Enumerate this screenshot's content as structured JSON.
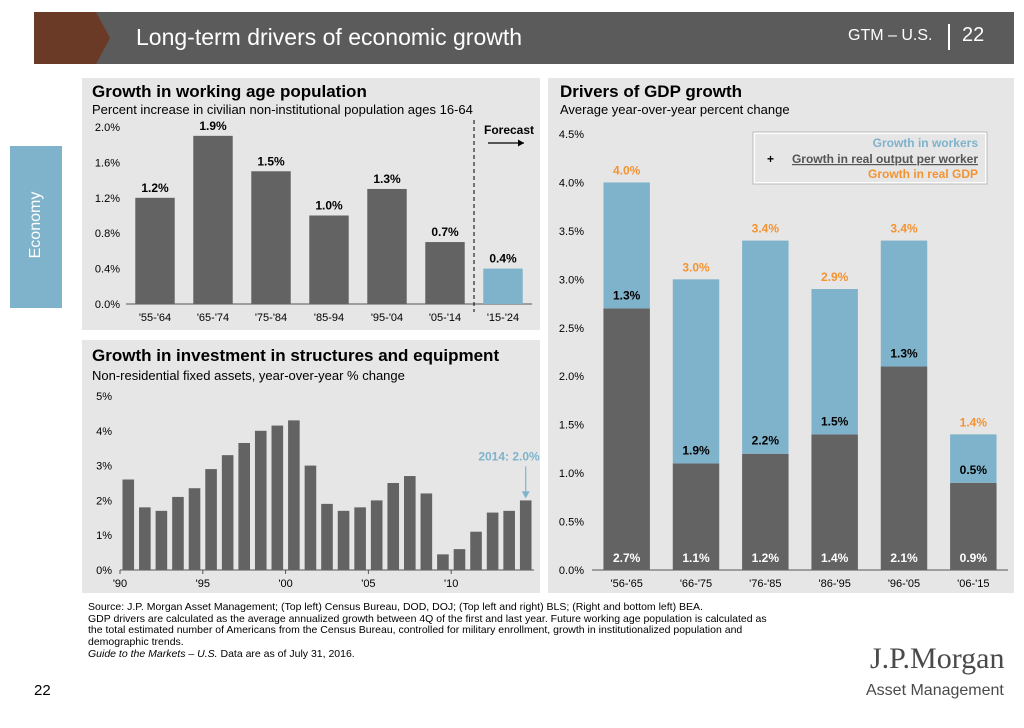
{
  "header": {
    "title": "Long-term drivers of economic growth",
    "right_label": "GTM – U.S.",
    "page": "22"
  },
  "sidebar": {
    "label": "Economy"
  },
  "colors": {
    "gray_bar": "#636363",
    "blue_bar": "#7fb3cb",
    "orange": "#f39332",
    "brown": "#6b3a26"
  },
  "panels": {
    "population": {
      "title": "Growth in working age population",
      "subtitle": "Percent increase in civilian non-institutional population ages 16-64",
      "forecast": "Forecast"
    },
    "investment": {
      "title": "Growth in investment in structures and equipment",
      "subtitle": "Non-residential fixed assets, year-over-year % change",
      "annotation": "2014: 2.0%"
    },
    "gdp": {
      "title": "Drivers of GDP growth",
      "subtitle": "Average year-over-year percent change",
      "legend": {
        "workers": "Growth in workers",
        "plus": "+",
        "output": "Growth in real output per worker",
        "gdp": "Growth in real GDP"
      }
    }
  },
  "chart_data": [
    {
      "type": "bar",
      "title": "Growth in working age population",
      "categories": [
        "'55-'64",
        "'65-'74",
        "'75-'84",
        "'85-94",
        "'95-'04",
        "'05-'14",
        "'15-'24"
      ],
      "values": [
        1.2,
        1.9,
        1.5,
        1.0,
        1.3,
        0.7,
        0.4
      ],
      "value_labels": [
        "1.2%",
        "1.9%",
        "1.5%",
        "1.0%",
        "1.3%",
        "0.7%",
        "0.4%"
      ],
      "forecast_from_index": 6,
      "yticks": [
        "0.0%",
        "0.4%",
        "0.8%",
        "1.2%",
        "1.6%",
        "2.0%"
      ],
      "ylim": [
        0,
        2.0
      ]
    },
    {
      "type": "bar",
      "title": "Growth in investment in structures and equipment",
      "years": [
        1990,
        1991,
        1992,
        1993,
        1994,
        1995,
        1996,
        1997,
        1998,
        1999,
        2000,
        2001,
        2002,
        2003,
        2004,
        2005,
        2006,
        2007,
        2008,
        2009,
        2010,
        2011,
        2012,
        2013,
        2014
      ],
      "values": [
        2.6,
        1.8,
        1.7,
        2.1,
        2.35,
        2.9,
        3.3,
        3.65,
        4.0,
        4.15,
        4.3,
        3.0,
        1.9,
        1.7,
        1.8,
        2.0,
        2.5,
        2.7,
        2.2,
        0.45,
        0.6,
        1.1,
        1.65,
        1.7,
        2.0
      ],
      "xticks": [
        "'90",
        "'95",
        "'00",
        "'05",
        "'10"
      ],
      "yticks": [
        "0%",
        "1%",
        "2%",
        "3%",
        "4%",
        "5%"
      ],
      "ylim": [
        0,
        5
      ]
    },
    {
      "type": "bar",
      "title": "Drivers of GDP growth",
      "categories": [
        "'56-'65",
        "'66-'75",
        "'76-'85",
        "'86-'95",
        "'96-'05",
        "'06-'15"
      ],
      "series": [
        {
          "name": "Growth in workers",
          "values": [
            1.3,
            1.9,
            2.2,
            1.5,
            1.3,
            0.5
          ],
          "labels": [
            "1.3%",
            "1.9%",
            "2.2%",
            "1.5%",
            "1.3%",
            "0.5%"
          ]
        },
        {
          "name": "Growth in real output per worker",
          "values": [
            2.7,
            1.1,
            1.2,
            1.4,
            2.1,
            0.9
          ],
          "labels": [
            "2.7%",
            "1.1%",
            "1.2%",
            "1.4%",
            "2.1%",
            "0.9%"
          ]
        }
      ],
      "totals": [
        4.0,
        3.0,
        3.4,
        2.9,
        3.4,
        1.4
      ],
      "total_labels": [
        "4.0%",
        "3.0%",
        "3.4%",
        "2.9%",
        "3.4%",
        "1.4%"
      ],
      "yticks": [
        "0.0%",
        "0.5%",
        "1.0%",
        "1.5%",
        "2.0%",
        "2.5%",
        "3.0%",
        "3.5%",
        "4.0%",
        "4.5%"
      ],
      "ylim": [
        0,
        4.5
      ]
    }
  ],
  "footnotes": {
    "line1": "Source: J.P. Morgan Asset Management; (Top left) Census Bureau, DOD, DOJ; (Top left and right) BLS; (Right and bottom left) BEA.",
    "line2": "GDP drivers are calculated as the average annualized growth between 4Q of the first and last year. Future working age population is calculated as",
    "line3": "the total estimated number of Americans from the Census Bureau, controlled for military enrollment, growth in institutionalized population and",
    "line4": "demographic trends.",
    "line5_italic": "Guide to the Markets – U.S.",
    "line5_rest": " Data are as of July 31, 2016."
  },
  "page_number": "22",
  "logo": {
    "line1": "J.P.Morgan",
    "line2": "Asset Management"
  }
}
